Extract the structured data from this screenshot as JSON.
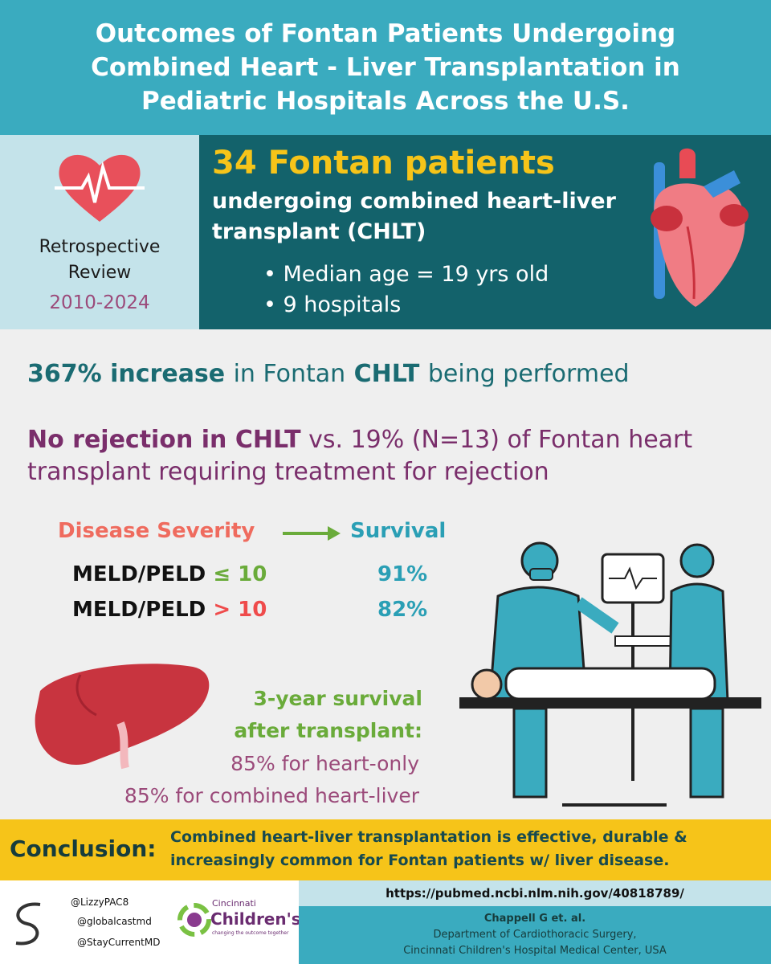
{
  "header": {
    "title": "Outcomes of Fontan Patients Undergoing Combined Heart - Liver Transplantation in Pediatric Hospitals Across the U.S."
  },
  "study": {
    "design": "Retrospective Review",
    "period": "2010-2024"
  },
  "cohort": {
    "headline": "34 Fontan patients",
    "description": "undergoing combined heart-liver transplant (CHLT)",
    "bullets": [
      "Median age = 19 yrs old",
      "9 hospitals"
    ]
  },
  "findings": {
    "increase": [
      "367% increase",
      "in Fontan",
      "CHLT",
      "being performed"
    ],
    "rejection": [
      "No rejection in CHLT",
      "vs. 19% (N=13) of Fontan heart transplant requiring treatment for rejection"
    ]
  },
  "table": {
    "headers": [
      "Disease Severity",
      "Survival"
    ],
    "rows": [
      {
        "label": "MELD/PELD",
        "threshold": "≤ 10",
        "survival": "91%"
      },
      {
        "label": "MELD/PELD",
        "threshold": "> 10",
        "survival": "82%"
      }
    ]
  },
  "three_year": {
    "title": "3-year survival after transplant:",
    "lines": [
      "85% for heart-only",
      "85% for combined heart-liver"
    ]
  },
  "conclusion": {
    "label": "Conclusion:",
    "text": "Combined heart-liver transplantation is effective, durable & increasingly common for Fontan patients w/ liver disease."
  },
  "footer": {
    "handles": [
      "@LizzyPAC8",
      "@globalcastmd",
      "@StayCurrentMD"
    ],
    "logo": {
      "name": "Cincinnati",
      "brand": "Children's",
      "tagline": "changing the outcome together"
    },
    "url": "https://pubmed.ncbi.nlm.nih.gov/40818789/",
    "citation": [
      "Chappell G et. al.",
      "Department of Cardiothoracic Surgery,",
      "Cincinnati Children's Hospital Medical Center, USA"
    ]
  }
}
